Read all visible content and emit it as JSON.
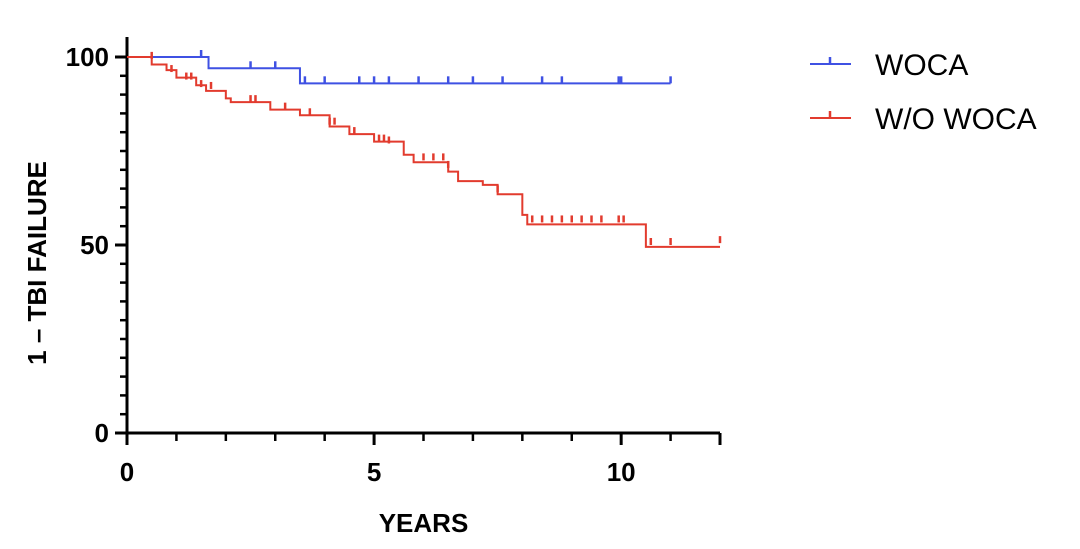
{
  "chart_data": {
    "type": "line",
    "step": true,
    "xlabel": "YEARS",
    "ylabel": "1 – TBI FAILURE",
    "xlim": [
      0,
      12
    ],
    "ylim": [
      0,
      100
    ],
    "x_ticks": [
      0,
      5,
      10
    ],
    "y_ticks": [
      0,
      50,
      100
    ],
    "x_minor_step": 1,
    "y_minor_step": 5,
    "legend_position": "top-right",
    "grid": false,
    "series": [
      {
        "name": "WOCA",
        "color": "#3f51e3",
        "steps": [
          [
            0,
            100
          ],
          [
            1.65,
            97
          ],
          [
            3.5,
            93
          ],
          [
            11,
            93
          ]
        ],
        "censored": [
          [
            1.5,
            100
          ],
          [
            2.5,
            97
          ],
          [
            3.0,
            97
          ],
          [
            3.6,
            93
          ],
          [
            4.0,
            93
          ],
          [
            4.7,
            93
          ],
          [
            5.0,
            93
          ],
          [
            5.3,
            93
          ],
          [
            5.9,
            93
          ],
          [
            6.5,
            93
          ],
          [
            7.0,
            93
          ],
          [
            7.6,
            93
          ],
          [
            8.4,
            93
          ],
          [
            8.8,
            93
          ],
          [
            9.95,
            93
          ],
          [
            10.0,
            93
          ],
          [
            11.0,
            93
          ]
        ]
      },
      {
        "name": "W/O WOCA",
        "color": "#e23b2e",
        "steps": [
          [
            0,
            100
          ],
          [
            0.5,
            98
          ],
          [
            0.8,
            96.5
          ],
          [
            1.0,
            94.5
          ],
          [
            1.4,
            92.5
          ],
          [
            1.6,
            91
          ],
          [
            2.0,
            89
          ],
          [
            2.1,
            88
          ],
          [
            2.9,
            86
          ],
          [
            3.5,
            84.5
          ],
          [
            4.1,
            81.5
          ],
          [
            4.5,
            79.5
          ],
          [
            5.0,
            77.5
          ],
          [
            5.6,
            74
          ],
          [
            5.8,
            72
          ],
          [
            6.5,
            69.5
          ],
          [
            6.7,
            67
          ],
          [
            7.2,
            66
          ],
          [
            7.5,
            63.5
          ],
          [
            8.0,
            58
          ],
          [
            8.1,
            55.5
          ],
          [
            10.5,
            49.5
          ],
          [
            12,
            49.5
          ]
        ],
        "censored": [
          [
            0.5,
            99.5
          ],
          [
            0.9,
            96
          ],
          [
            1.2,
            94
          ],
          [
            1.3,
            94
          ],
          [
            1.5,
            92
          ],
          [
            1.7,
            91.5
          ],
          [
            2.5,
            88
          ],
          [
            2.6,
            88
          ],
          [
            3.2,
            86
          ],
          [
            3.7,
            84.5
          ],
          [
            4.1,
            82
          ],
          [
            4.2,
            82
          ],
          [
            4.6,
            79.5
          ],
          [
            5.1,
            77.5
          ],
          [
            5.2,
            77.5
          ],
          [
            5.3,
            77
          ],
          [
            6.0,
            72.5
          ],
          [
            6.2,
            72.5
          ],
          [
            6.4,
            72.5
          ],
          [
            6.5,
            70.5
          ],
          [
            7.5,
            64
          ],
          [
            8.2,
            56
          ],
          [
            8.4,
            56
          ],
          [
            8.6,
            56
          ],
          [
            8.8,
            56
          ],
          [
            9.0,
            56
          ],
          [
            9.2,
            56
          ],
          [
            9.4,
            56
          ],
          [
            9.6,
            56
          ],
          [
            9.95,
            56
          ],
          [
            10.05,
            56
          ],
          [
            10.6,
            50
          ],
          [
            11.0,
            50
          ],
          [
            12.0,
            50.5
          ]
        ]
      }
    ]
  }
}
